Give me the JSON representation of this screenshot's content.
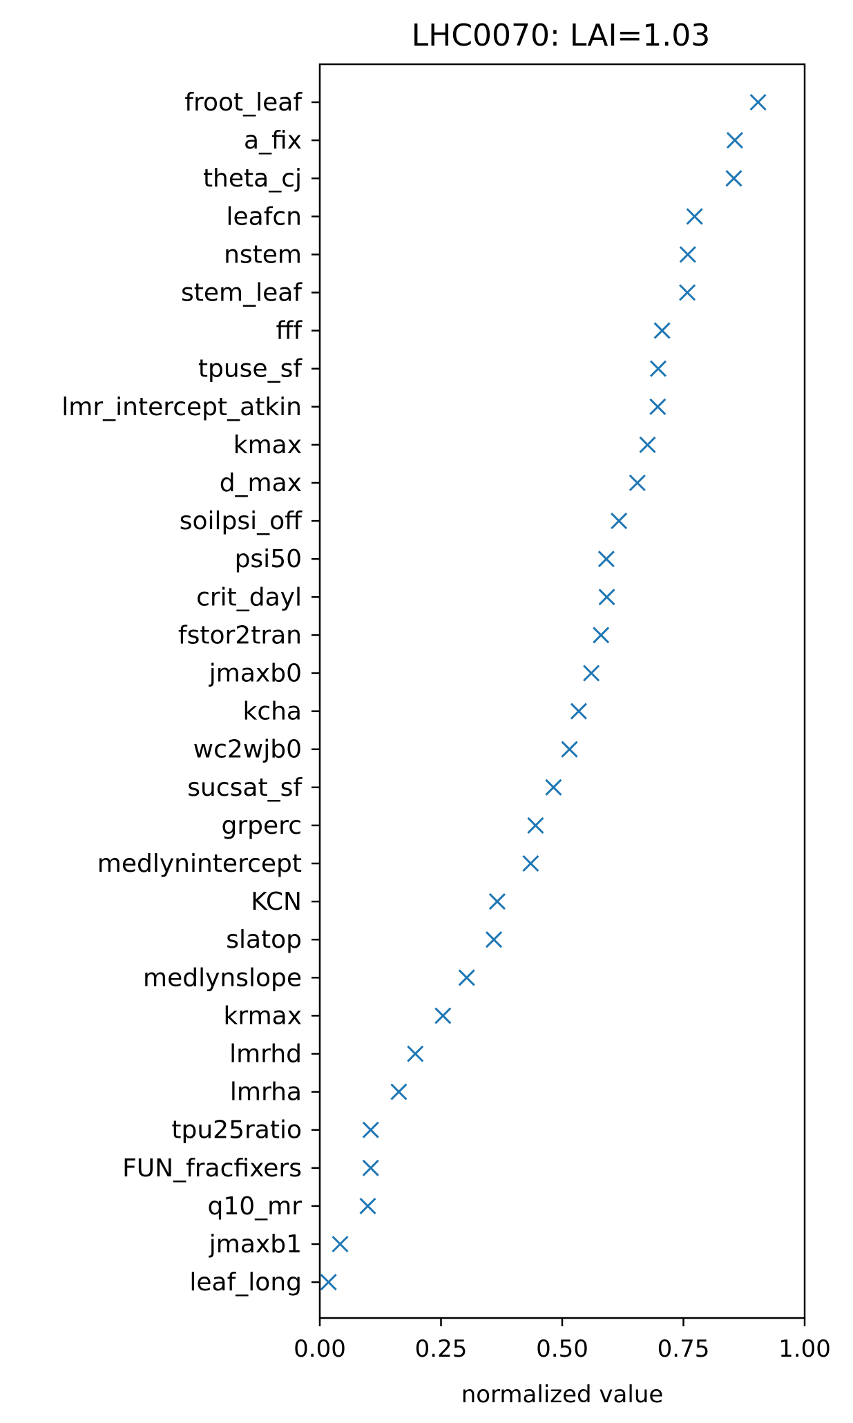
{
  "chart_data": {
    "type": "scatter",
    "title": "LHC0070:   LAI=1.03",
    "xlabel": "normalized value",
    "ylabel": "",
    "xlim": [
      0.0,
      1.0
    ],
    "xticks": [
      "0.00",
      "0.25",
      "0.50",
      "0.75",
      "1.00"
    ],
    "marker": "x",
    "color": "#1f77b4",
    "grid": false,
    "categories": [
      "froot_leaf",
      "a_fix",
      "theta_cj",
      "leafcn",
      "nstem",
      "stem_leaf",
      "fff",
      "tpuse_sf",
      "lmr_intercept_atkin",
      "kmax",
      "d_max",
      "soilpsi_off",
      "psi50",
      "crit_dayl",
      "fstor2tran",
      "jmaxb0",
      "kcha",
      "wc2wjb0",
      "sucsat_sf",
      "grperc",
      "medlynintercept",
      "KCN",
      "slatop",
      "medlynslope",
      "krmax",
      "lmrhd",
      "lmrha",
      "tpu25ratio",
      "FUN_fracfixers",
      "q10_mr",
      "jmaxb1",
      "leaf_long"
    ],
    "values": [
      0.904,
      0.856,
      0.854,
      0.773,
      0.759,
      0.758,
      0.706,
      0.698,
      0.697,
      0.676,
      0.655,
      0.617,
      0.591,
      0.592,
      0.58,
      0.56,
      0.534,
      0.515,
      0.482,
      0.445,
      0.435,
      0.366,
      0.359,
      0.303,
      0.254,
      0.197,
      0.163,
      0.105,
      0.105,
      0.099,
      0.042,
      0.018
    ]
  }
}
